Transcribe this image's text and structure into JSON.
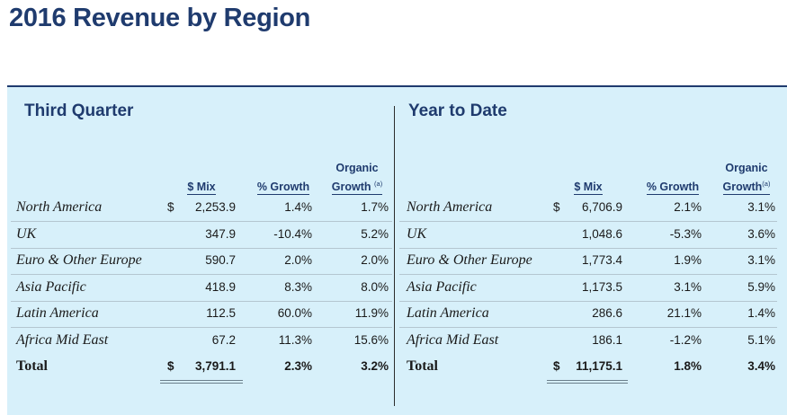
{
  "title": "2016 Revenue by Region",
  "sections": [
    {
      "title": "Third Quarter",
      "headers": {
        "mix": "$ Mix",
        "growth": "% Growth",
        "organic_line1": "Organic",
        "organic_line2": "Growth",
        "footnote": "(a)"
      },
      "rows": [
        {
          "region": "North America",
          "currency": "$",
          "mix": "2,253.9",
          "growth": "1.4%",
          "organic": "1.7%"
        },
        {
          "region": "UK",
          "currency": "",
          "mix": "347.9",
          "growth": "-10.4%",
          "organic": "5.2%"
        },
        {
          "region": "Euro & Other Europe",
          "currency": "",
          "mix": "590.7",
          "growth": "2.0%",
          "organic": "2.0%"
        },
        {
          "region": "Asia Pacific",
          "currency": "",
          "mix": "418.9",
          "growth": "8.3%",
          "organic": "8.0%"
        },
        {
          "region": "Latin America",
          "currency": "",
          "mix": "112.5",
          "growth": "60.0%",
          "organic": "11.9%"
        },
        {
          "region": "Africa Mid East",
          "currency": "",
          "mix": "67.2",
          "growth": "11.3%",
          "organic": "15.6%"
        }
      ],
      "total": {
        "region": "Total",
        "currency": "$",
        "mix": "3,791.1",
        "growth": "2.3%",
        "organic": "3.2%"
      }
    },
    {
      "title": "Year to Date",
      "headers": {
        "mix": "$ Mix",
        "growth": "% Growth",
        "organic_line1": "Organic",
        "organic_line2": "Growth",
        "footnote": "(a)"
      },
      "rows": [
        {
          "region": "North America",
          "currency": "$",
          "mix": "6,706.9",
          "growth": "2.1%",
          "organic": "3.1%"
        },
        {
          "region": "UK",
          "currency": "",
          "mix": "1,048.6",
          "growth": "-5.3%",
          "organic": "3.6%"
        },
        {
          "region": "Euro & Other Europe",
          "currency": "",
          "mix": "1,773.4",
          "growth": "1.9%",
          "organic": "3.1%"
        },
        {
          "region": "Asia Pacific",
          "currency": "",
          "mix": "1,173.5",
          "growth": "3.1%",
          "organic": "5.9%"
        },
        {
          "region": "Latin America",
          "currency": "",
          "mix": "286.6",
          "growth": "21.1%",
          "organic": "1.4%"
        },
        {
          "region": "Africa Mid East",
          "currency": "",
          "mix": "186.1",
          "growth": "-1.2%",
          "organic": "5.1%"
        }
      ],
      "total": {
        "region": "Total",
        "currency": "$",
        "mix": "11,175.1",
        "growth": "1.8%",
        "organic": "3.4%"
      }
    }
  ]
}
